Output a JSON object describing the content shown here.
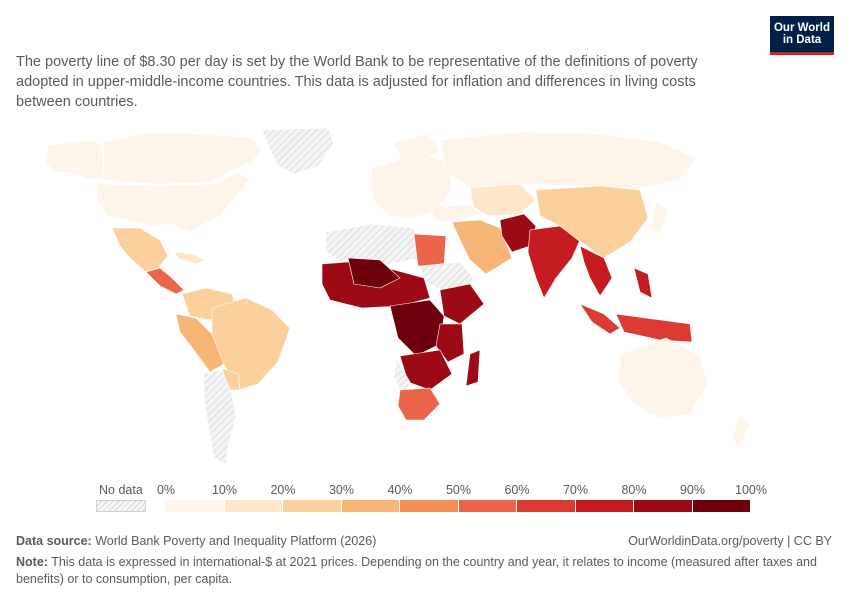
{
  "logo": {
    "line1": "Our World",
    "line2": "in Data"
  },
  "subtitle": "The poverty line of $8.30 per day is set by the World Bank to be representative of the definitions of poverty adopted in upper-middle-income countries. This data is adjusted for inflation and differences in living costs between countries.",
  "legend": {
    "no_data_label": "No data",
    "tick_labels": [
      "0%",
      "10%",
      "20%",
      "30%",
      "40%",
      "50%",
      "60%",
      "70%",
      "80%",
      "90%",
      "100%"
    ],
    "colors": [
      "#fef5ea",
      "#fde6c9",
      "#fbd09c",
      "#f7b577",
      "#f3905a",
      "#ea6549",
      "#dc3a32",
      "#c51c22",
      "#9c0a16",
      "#6e000b"
    ],
    "no_data_color": "#e6e6e6"
  },
  "source": {
    "label": "Data source:",
    "text": "World Bank Poverty and Inequality Platform (2026)"
  },
  "credit": "OurWorldinData.org/poverty | CC BY",
  "note": {
    "label": "Note:",
    "text": "This data is expressed in international-$ at 2021 prices. Depending on the country and year, it relates to income (measured after taxes and benefits) or to consumption, per capita."
  }
}
